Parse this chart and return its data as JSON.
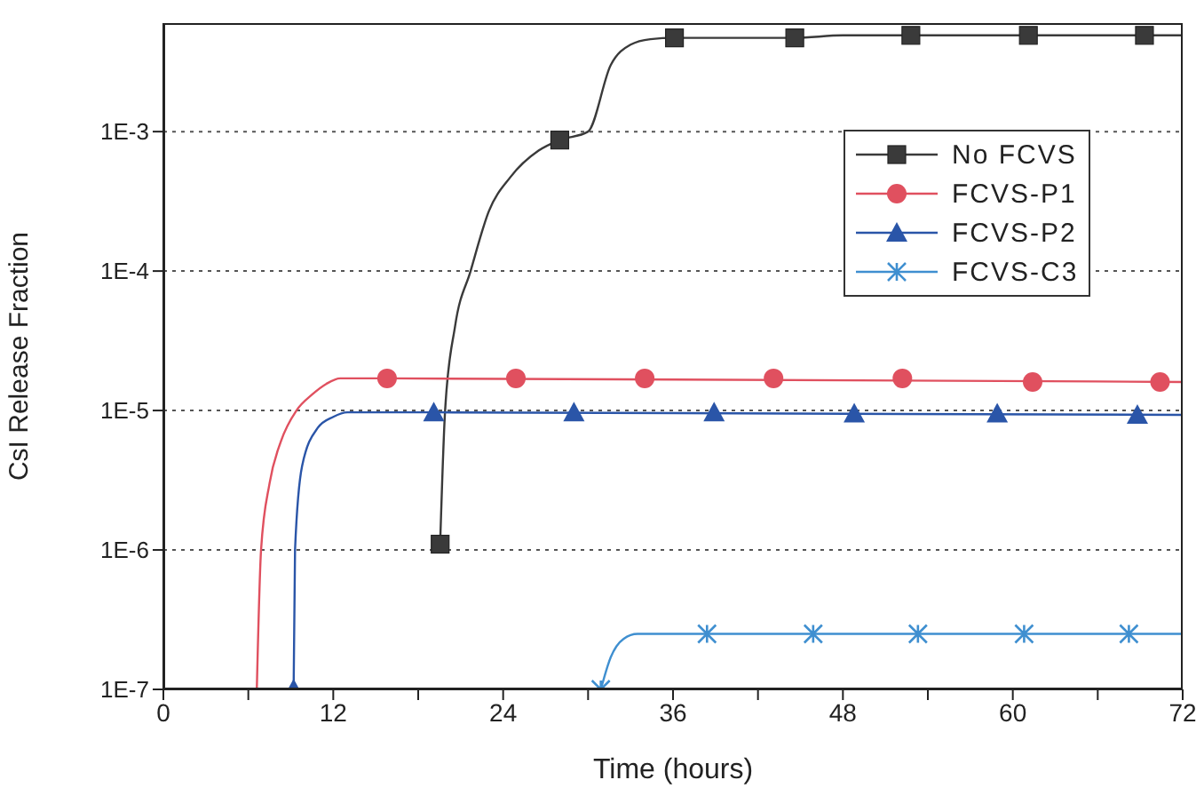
{
  "chart_data": {
    "type": "line",
    "xlabel": "Time (hours)",
    "ylabel": "CsI Release Fraction",
    "log": "y",
    "grid": "y",
    "legend": "top right",
    "xlim": [
      0,
      72
    ],
    "xticks": [
      0,
      {
        "value": 6,
        "label": null
      },
      12,
      {
        "value": 18,
        "label": null
      },
      24,
      {
        "value": 30,
        "label": null
      },
      36,
      {
        "value": 42,
        "label": null
      },
      48,
      {
        "value": 54,
        "label": null
      },
      60,
      {
        "value": 66,
        "label": null
      },
      72
    ],
    "ylim": [
      1e-07,
      0.006
    ],
    "yticks": [
      {
        "value": 1e-07,
        "label": "1E-7"
      },
      {
        "value": 1e-06,
        "label": "1E-6"
      },
      {
        "value": 1e-05,
        "label": "1E-5"
      },
      {
        "value": 0.0001,
        "label": "1E-4"
      },
      {
        "value": 0.001,
        "label": "1E-3"
      }
    ],
    "series": [
      {
        "color": "#3a3a3a",
        "marker": "none",
        "x": [
          19.55,
          19.9,
          20.6,
          21.7,
          23,
          24.5,
          26.5,
          28,
          30,
          31.6,
          33,
          34.4,
          36.1,
          44.6,
          48,
          52.8,
          61.1,
          69.3,
          72
        ],
        "values": [
          1.1e-06,
          1e-05,
          4e-05,
          0.0001,
          0.00027,
          0.00047,
          0.00073,
          0.00087,
          0.001,
          0.003,
          0.0042,
          0.0046,
          0.0047,
          0.0047,
          0.0049,
          0.0049,
          0.0049,
          0.0049,
          0.0049
        ]
      },
      {
        "color": "#e0505f",
        "marker": "none",
        "x": [
          6.6,
          6.9,
          7.5,
          8.3,
          9.4,
          10.5,
          11.5,
          12.5,
          15.8,
          72
        ],
        "values": [
          1e-07,
          1e-06,
          3e-06,
          6e-06,
          1e-05,
          1.3e-05,
          1.55e-05,
          1.7e-05,
          1.7e-05,
          1.6e-05
        ]
      },
      {
        "color": "#2a55a8",
        "marker": "none",
        "x": [
          9.2,
          9.3,
          9.8,
          10.9,
          12,
          13,
          19.1,
          72
        ],
        "values": [
          1e-07,
          1e-06,
          4e-06,
          7.5e-06,
          9e-06,
          9.7e-06,
          9.7e-06,
          9.3e-06
        ]
      },
      {
        "color": "#3f8fd0",
        "marker": "none",
        "x": [
          30.9,
          31.6,
          32.5,
          33.5,
          38.4,
          72
        ],
        "values": [
          1e-07,
          1.7e-07,
          2.3e-07,
          2.5e-07,
          2.5e-07,
          2.5e-07
        ]
      },
      {
        "type": "scatter",
        "name": "No FCVS",
        "color": "#3a3a3a",
        "marker": "square",
        "x": [
          19.55,
          28,
          36.1,
          44.6,
          52.8,
          61.1,
          69.3
        ],
        "values": [
          1.1e-06,
          0.00087,
          0.0047,
          0.0047,
          0.0049,
          0.0049,
          0.0049
        ]
      },
      {
        "type": "scatter",
        "name": "FCVS-P1",
        "color": "#e0505f",
        "marker": "circle",
        "x": [
          15.8,
          24.9,
          34,
          43.1,
          52.2,
          61.4,
          70.4
        ],
        "values": [
          1.7e-05,
          1.7e-05,
          1.7e-05,
          1.7e-05,
          1.7e-05,
          1.6e-05,
          1.6e-05
        ]
      },
      {
        "type": "scatter",
        "name": "FCVS-P2",
        "color": "#2a55a8",
        "marker": "triangle",
        "x": [
          9.2,
          19.1,
          29,
          38.9,
          48.8,
          58.9,
          68.8
        ],
        "values": [
          1e-07,
          9.7e-06,
          9.7e-06,
          9.7e-06,
          9.5e-06,
          9.5e-06,
          9.3e-06
        ]
      },
      {
        "type": "scatter",
        "name": "FCVS-C3",
        "color": "#3f8fd0",
        "marker": "cross",
        "x": [
          30.9,
          38.4,
          45.9,
          53.3,
          60.8,
          68.2
        ],
        "values": [
          1e-07,
          2.5e-07,
          2.5e-07,
          2.5e-07,
          2.5e-07,
          2.5e-07
        ]
      }
    ]
  }
}
